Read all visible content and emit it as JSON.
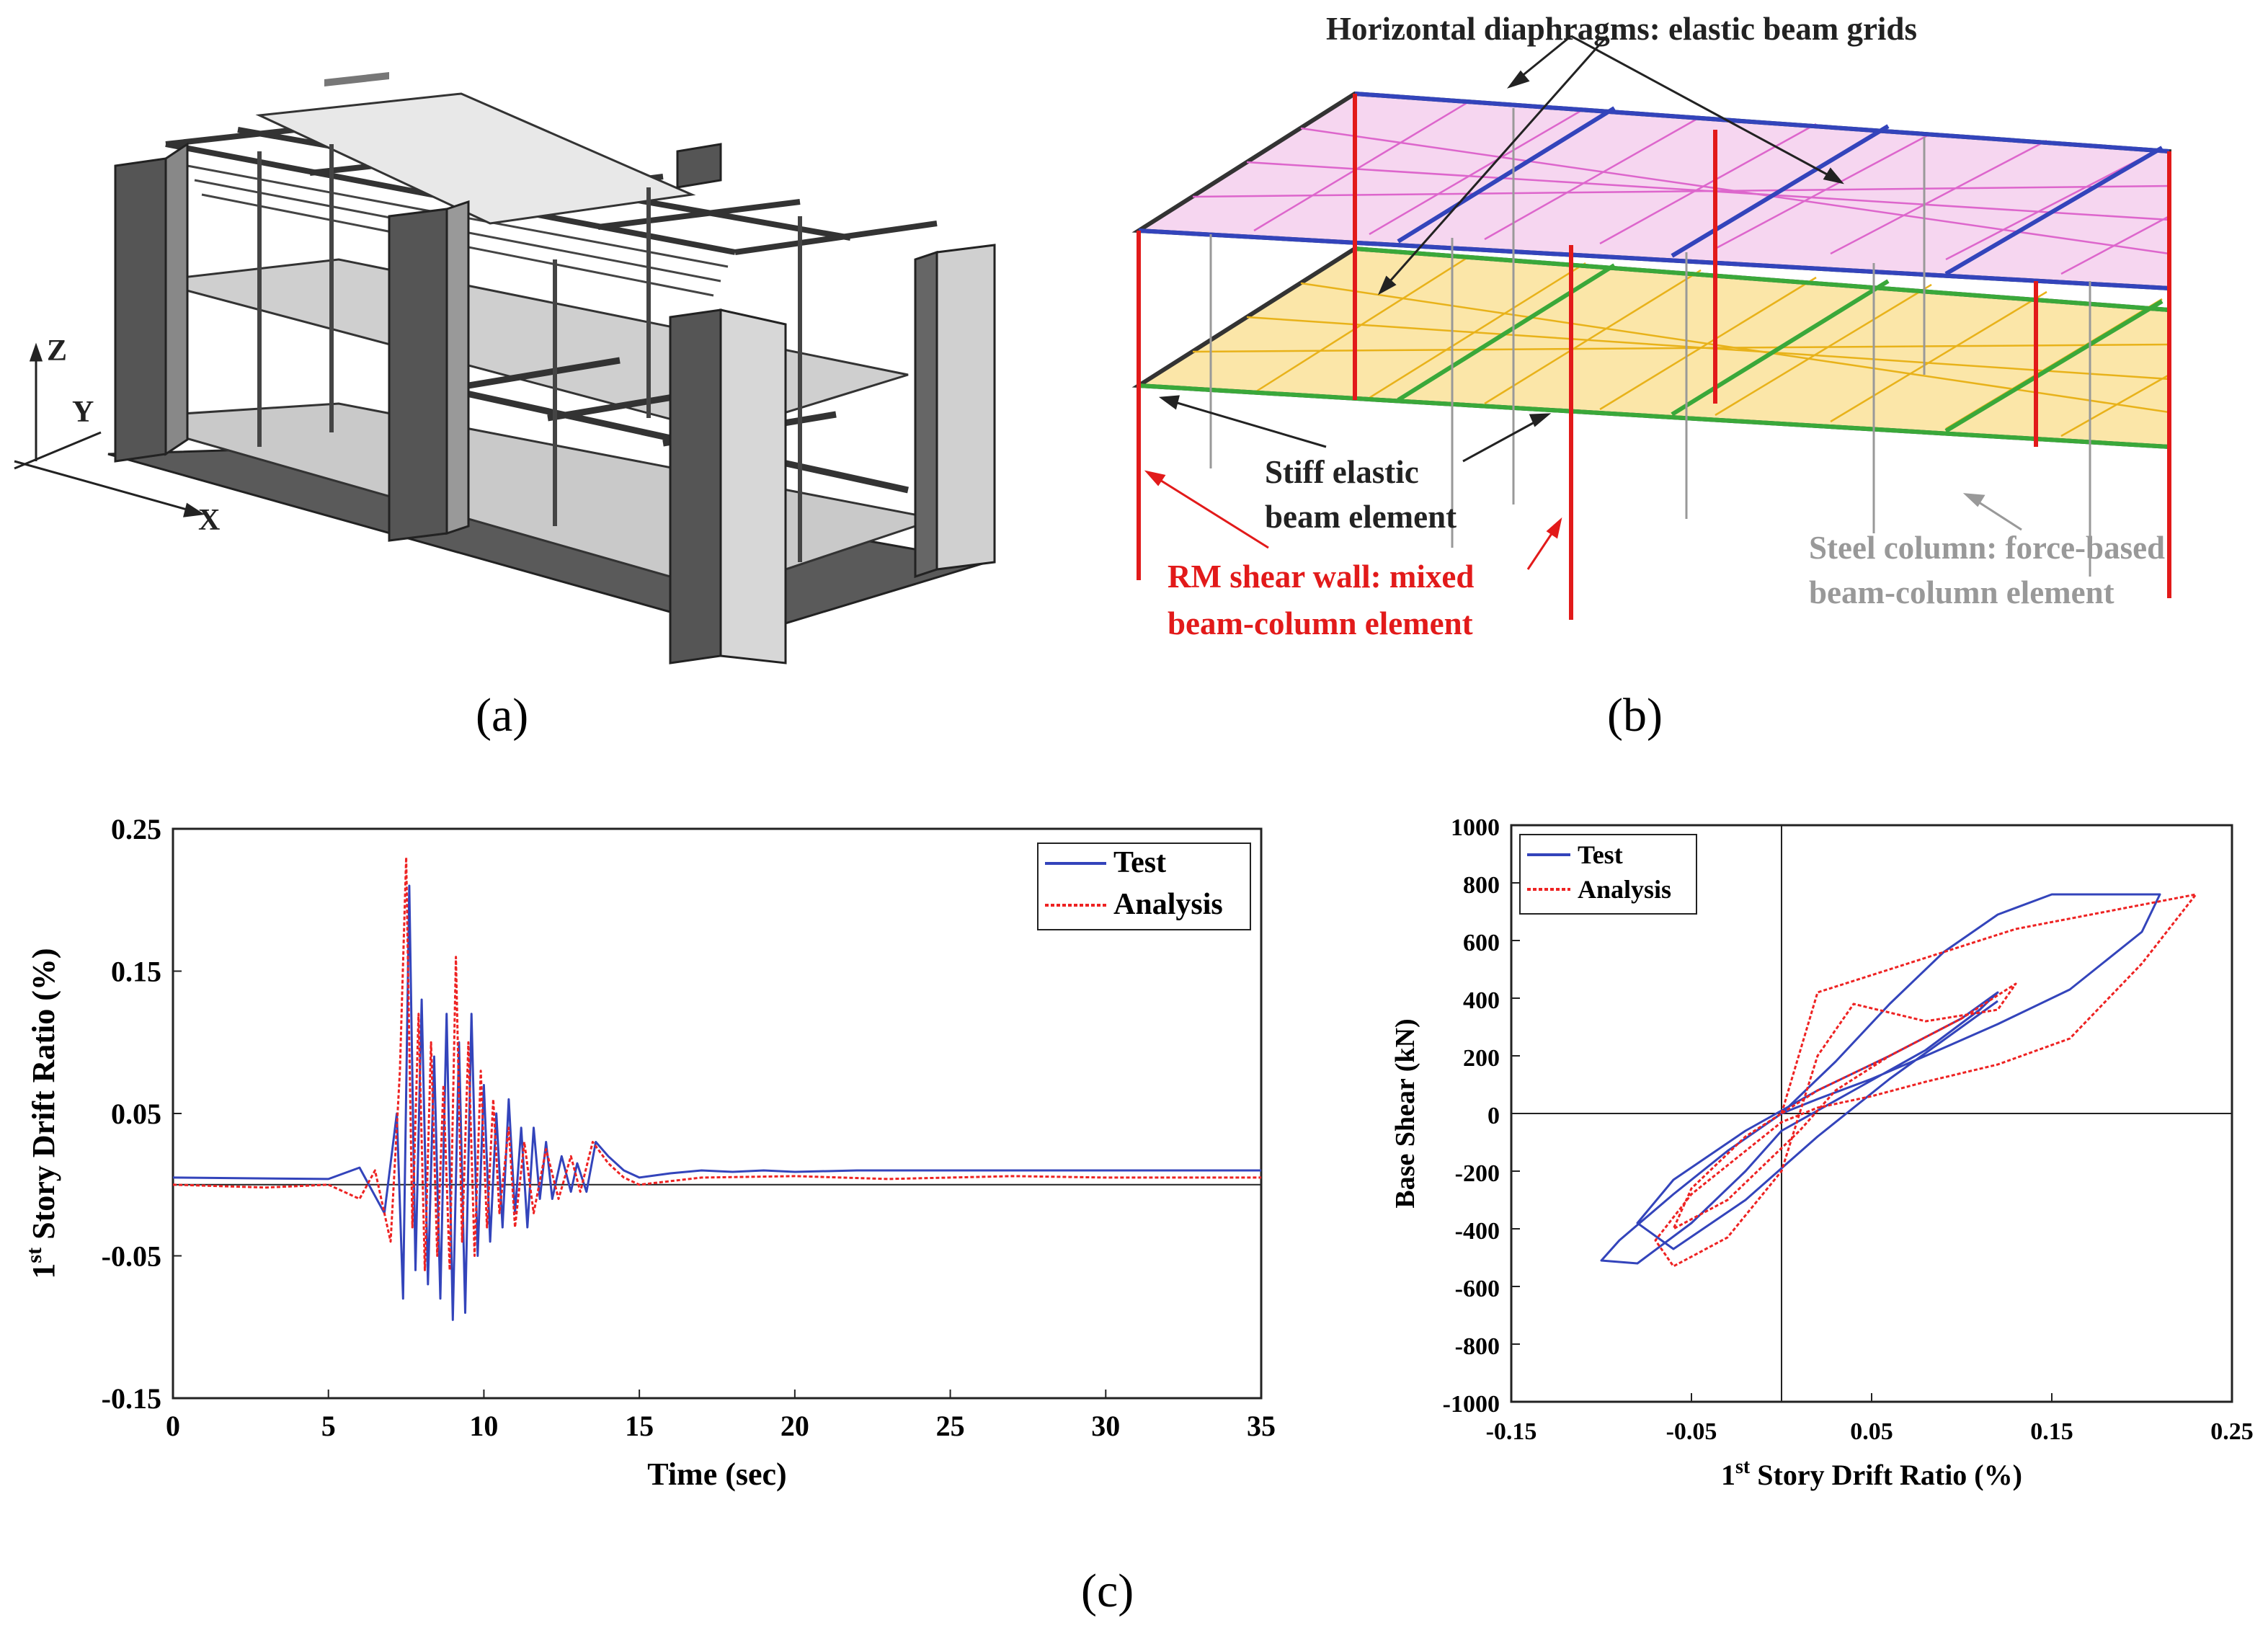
{
  "panel_a": {
    "label": "(a)",
    "axes": {
      "z": "Z",
      "y": "Y",
      "x": "X"
    }
  },
  "panel_b": {
    "label": "(b)",
    "annotations": {
      "diaphragms": "Horizontal diaphragms: elastic beam grids",
      "stiff_line1": "Stiff elastic",
      "stiff_line2": "beam element",
      "rm_line1": "RM shear wall: mixed",
      "rm_line2": "beam-column element",
      "steel_line1": "Steel column: force-based",
      "steel_line2": "beam-column element"
    },
    "colors": {
      "red": "#e21a1a",
      "blue": "#3344bb",
      "green": "#3aa83a",
      "magenta": "#dd66cc",
      "yellow": "#e8b21a",
      "gray": "#999999"
    }
  },
  "panel_c": {
    "label": "(c)"
  },
  "chart_data": [
    {
      "type": "line",
      "title": "",
      "xlabel": "Time (sec)",
      "ylabel": "1st Story Drift Ratio (%)",
      "ylabel_main": "1",
      "ylabel_sup": "st",
      "ylabel_rest": " Story Drift Ratio (%)",
      "xlim": [
        0,
        35
      ],
      "ylim": [
        -0.15,
        0.25
      ],
      "xticks": [
        "0",
        "5",
        "10",
        "15",
        "20",
        "25",
        "30",
        "35"
      ],
      "yticks": [
        "-0.15",
        "-0.05",
        "0.05",
        "0.15",
        "0.25"
      ],
      "legend": [
        "Test",
        "Analysis"
      ],
      "legend_position": "top-right",
      "series": [
        {
          "name": "Test",
          "color": "#3344bb",
          "x": [
            0,
            5.0,
            6.0,
            6.8,
            7.2,
            7.4,
            7.6,
            7.8,
            8.0,
            8.2,
            8.4,
            8.6,
            8.8,
            9.0,
            9.2,
            9.4,
            9.6,
            9.8,
            10.0,
            10.2,
            10.4,
            10.6,
            10.8,
            11.0,
            11.2,
            11.4,
            11.6,
            11.8,
            12.0,
            12.2,
            12.5,
            12.8,
            13.0,
            13.3,
            13.6,
            14.0,
            14.5,
            15.0,
            16.0,
            17.0,
            18.0,
            19.0,
            20.0,
            22.0,
            25.0,
            27.0,
            30.0,
            35.0
          ],
          "values": [
            0.005,
            0.004,
            0.012,
            -0.02,
            0.05,
            -0.08,
            0.21,
            -0.06,
            0.13,
            -0.07,
            0.09,
            -0.08,
            0.12,
            -0.095,
            0.1,
            -0.09,
            0.12,
            -0.05,
            0.07,
            -0.04,
            0.05,
            -0.03,
            0.06,
            -0.02,
            0.04,
            -0.03,
            0.04,
            -0.01,
            0.03,
            -0.01,
            0.02,
            -0.005,
            0.015,
            -0.005,
            0.03,
            0.02,
            0.01,
            0.005,
            0.008,
            0.01,
            0.009,
            0.01,
            0.009,
            0.01,
            0.01,
            0.01,
            0.01,
            0.01
          ]
        },
        {
          "name": "Analysis",
          "color": "#ee2222",
          "x": [
            0,
            3.0,
            5.0,
            6.0,
            6.5,
            7.0,
            7.3,
            7.5,
            7.7,
            7.9,
            8.1,
            8.3,
            8.5,
            8.7,
            8.9,
            9.1,
            9.3,
            9.5,
            9.7,
            9.9,
            10.1,
            10.3,
            10.5,
            10.8,
            11.0,
            11.3,
            11.6,
            12.0,
            12.4,
            12.8,
            13.1,
            13.5,
            14.0,
            14.5,
            15.0,
            17.0,
            20.0,
            23.0,
            27.0,
            30.0,
            35.0
          ],
          "values": [
            0.0,
            -0.002,
            0.0,
            -0.01,
            0.01,
            -0.04,
            0.08,
            0.23,
            -0.03,
            0.12,
            -0.06,
            0.1,
            -0.05,
            0.07,
            -0.06,
            0.16,
            -0.04,
            0.1,
            -0.05,
            0.08,
            -0.03,
            0.06,
            -0.02,
            0.04,
            -0.03,
            0.03,
            -0.02,
            0.025,
            -0.01,
            0.02,
            -0.005,
            0.03,
            0.015,
            0.005,
            0.0,
            0.005,
            0.006,
            0.004,
            0.006,
            0.005,
            0.005
          ]
        }
      ]
    },
    {
      "type": "line",
      "title": "",
      "xlabel": "1st Story Drift Ratio (%)",
      "xlabel_main": "1",
      "xlabel_sup": "st",
      "xlabel_rest": " Story Drift Ratio (%)",
      "ylabel": "Base Shear (kN)",
      "xlim": [
        -0.15,
        0.25
      ],
      "ylim": [
        -1000,
        1000
      ],
      "xticks": [
        "-0.15",
        "-0.05",
        "0.05",
        "0.15",
        "0.25"
      ],
      "yticks": [
        "1000",
        "800",
        "600",
        "400",
        "200",
        "0",
        "-200",
        "-400",
        "-600",
        "-800",
        "-1000"
      ],
      "legend": [
        "Test",
        "Analysis"
      ],
      "legend_position": "top-left",
      "series": [
        {
          "name": "Test",
          "color": "#3344bb",
          "x": [
            0.0,
            0.03,
            0.06,
            0.09,
            0.12,
            0.15,
            0.17,
            0.21,
            0.2,
            0.16,
            0.12,
            0.08,
            0.05,
            0.02,
            0.0,
            -0.03,
            -0.06,
            -0.09,
            -0.1,
            -0.08,
            -0.05,
            -0.02,
            0.0,
            0.04,
            0.08,
            0.11,
            0.12,
            0.1,
            0.06,
            0.02,
            -0.02,
            -0.06,
            -0.08,
            -0.06,
            -0.02,
            0.02,
            0.06,
            0.1,
            0.12
          ],
          "values": [
            0,
            180,
            380,
            560,
            690,
            760,
            760,
            760,
            630,
            430,
            310,
            200,
            120,
            50,
            0,
            -130,
            -280,
            -440,
            -510,
            -520,
            -380,
            -200,
            -60,
            80,
            220,
            360,
            420,
            330,
            200,
            80,
            -60,
            -230,
            -380,
            -470,
            -300,
            -80,
            120,
            300,
            390
          ]
        },
        {
          "name": "Analysis",
          "color": "#ee2222",
          "x": [
            0.0,
            0.02,
            0.05,
            0.09,
            0.13,
            0.18,
            0.23,
            0.2,
            0.16,
            0.12,
            0.08,
            0.05,
            0.02,
            0.0,
            -0.02,
            -0.05,
            -0.07,
            -0.06,
            -0.03,
            0.0,
            0.02,
            0.04,
            0.08,
            0.12,
            0.13,
            0.1,
            0.06,
            0.02,
            -0.02,
            -0.05,
            -0.06,
            -0.03,
            0.01,
            0.03,
            0.06,
            0.1
          ],
          "values": [
            0,
            420,
            480,
            560,
            640,
            700,
            760,
            520,
            260,
            170,
            110,
            60,
            20,
            -30,
            -130,
            -280,
            -440,
            -530,
            -430,
            -200,
            200,
            380,
            320,
            360,
            450,
            330,
            200,
            80,
            -80,
            -260,
            -400,
            -300,
            -60,
            80,
            200,
            330
          ]
        }
      ]
    }
  ]
}
